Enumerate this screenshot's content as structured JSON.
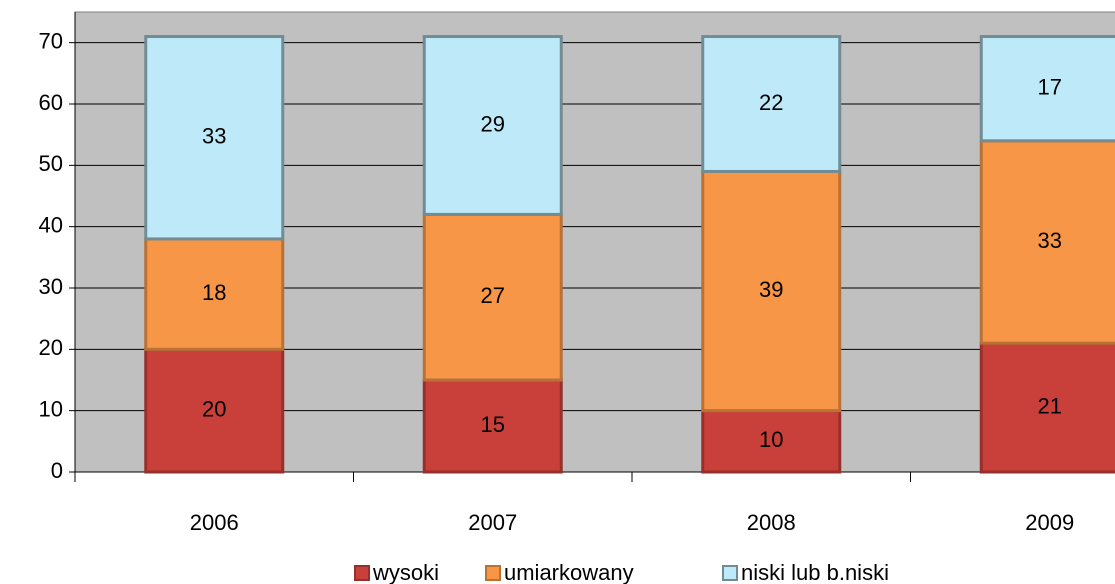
{
  "chart_data": {
    "type": "stacked-bar",
    "categories": [
      "2006",
      "2007",
      "2008",
      "2009"
    ],
    "series": [
      {
        "name": "wysoki",
        "color": "#c9403a",
        "values": [
          20,
          15,
          10,
          21
        ]
      },
      {
        "name": "umiarkowany",
        "color": "#f79646",
        "values": [
          18,
          27,
          39,
          33
        ]
      },
      {
        "name": "niski lub b.niski",
        "color": "#bde9f8",
        "values": [
          33,
          29,
          22,
          17
        ]
      }
    ],
    "ylim": [
      0,
      75
    ],
    "yticks": [
      0,
      10,
      20,
      30,
      40,
      50,
      60,
      70
    ],
    "grid": true
  }
}
